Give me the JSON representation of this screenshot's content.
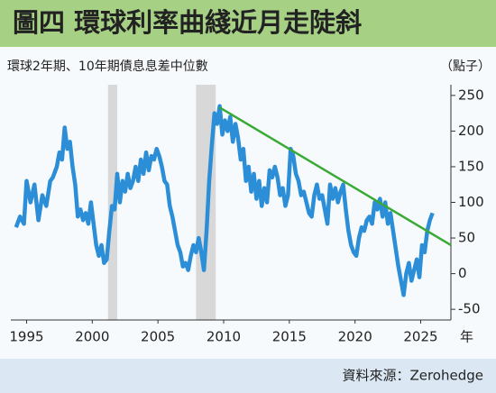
{
  "chart_data": {
    "type": "line",
    "title": "圖四 環球利率曲綫近月走陡斜",
    "subtitle": "環球2年期、10年期債息息差中位數",
    "y_unit": "（點子）",
    "x_unit": "年",
    "source": "資料來源：Zerohedge",
    "series": [
      {
        "color": "#2b8ed6",
        "x": [
          1994.2,
          1994.5,
          1994.8,
          1995.0,
          1995.3,
          1995.6,
          1995.9,
          1996.2,
          1996.5,
          1996.8,
          1997.0,
          1997.3,
          1997.5,
          1997.7,
          1997.9,
          1998.1,
          1998.3,
          1998.5,
          1998.7,
          1998.9,
          1999.1,
          1999.3,
          1999.5,
          1999.7,
          1999.9,
          2000.1,
          2000.3,
          2000.5,
          2000.7,
          2000.9,
          2001.1,
          2001.3,
          2001.5,
          2001.7,
          2001.9,
          2002.1,
          2002.3,
          2002.5,
          2002.7,
          2002.9,
          2003.1,
          2003.3,
          2003.5,
          2003.7,
          2003.9,
          2004.1,
          2004.3,
          2004.5,
          2004.7,
          2004.9,
          2005.1,
          2005.3,
          2005.5,
          2005.7,
          2005.9,
          2006.1,
          2006.3,
          2006.5,
          2006.7,
          2006.9,
          2007.1,
          2007.3,
          2007.5,
          2007.7,
          2007.9,
          2008.1,
          2008.3,
          2008.5,
          2008.7,
          2008.9,
          2009.1,
          2009.3,
          2009.5,
          2009.7,
          2009.9,
          2010.1,
          2010.3,
          2010.5,
          2010.7,
          2010.9,
          2011.1,
          2011.3,
          2011.5,
          2011.7,
          2011.9,
          2012.1,
          2012.3,
          2012.5,
          2012.7,
          2012.9,
          2013.1,
          2013.3,
          2013.5,
          2013.7,
          2013.9,
          2014.1,
          2014.3,
          2014.5,
          2014.7,
          2014.9,
          2015.1,
          2015.3,
          2015.5,
          2015.7,
          2015.9,
          2016.1,
          2016.3,
          2016.5,
          2016.7,
          2016.9,
          2017.1,
          2017.3,
          2017.5,
          2017.7,
          2017.9,
          2018.1,
          2018.3,
          2018.5,
          2018.7,
          2018.9,
          2019.1,
          2019.3,
          2019.5,
          2019.7,
          2019.9,
          2020.1,
          2020.3,
          2020.5,
          2020.7,
          2020.9,
          2021.1,
          2021.3,
          2021.5,
          2021.7,
          2021.9,
          2022.1,
          2022.3,
          2022.5,
          2022.7,
          2022.9,
          2023.1,
          2023.3,
          2023.5,
          2023.7,
          2023.9,
          2024.1,
          2024.3,
          2024.5,
          2024.7,
          2024.9,
          2025.1,
          2025.3,
          2025.5,
          2025.7,
          2025.9
        ],
        "values": [
          65,
          80,
          70,
          130,
          100,
          125,
          75,
          110,
          95,
          130,
          135,
          150,
          170,
          160,
          205,
          175,
          185,
          150,
          125,
          80,
          90,
          75,
          85,
          70,
          100,
          70,
          40,
          25,
          40,
          15,
          20,
          60,
          95,
          90,
          140,
          100,
          130,
          115,
          140,
          120,
          130,
          150,
          130,
          160,
          140,
          170,
          145,
          165,
          160,
          175,
          165,
          150,
          130,
          125,
          95,
          80,
          60,
          40,
          30,
          10,
          15,
          5,
          25,
          40,
          30,
          50,
          30,
          5,
          60,
          130,
          180,
          225,
          210,
          235,
          195,
          215,
          200,
          220,
          185,
          210,
          190,
          160,
          175,
          130,
          150,
          115,
          140,
          105,
          130,
          95,
          120,
          100,
          145,
          135,
          150,
          135,
          110,
          120,
          95,
          110,
          175,
          165,
          140,
          130,
          110,
          115,
          100,
          85,
          80,
          110,
          125,
          105,
          110,
          90,
          70,
          125,
          105,
          120,
          100,
          115,
          125,
          90,
          60,
          40,
          30,
          25,
          50,
          65,
          60,
          75,
          80,
          70,
          100,
          90,
          105,
          80,
          100,
          70,
          85,
          60,
          35,
          10,
          -10,
          -30,
          0,
          15,
          -10,
          5,
          20,
          -5,
          40,
          30,
          60,
          75,
          85
        ]
      }
    ],
    "trend": {
      "color": "#3aa935",
      "x": [
        2009.7,
        2027.3
      ],
      "values": [
        233,
        40
      ]
    },
    "shaded_periods": [
      [
        2001.2,
        2001.9
      ],
      [
        2007.9,
        2009.4
      ]
    ],
    "xlim": [
      1993.8,
      2027.3
    ],
    "ylim": [
      -65,
      265
    ],
    "xticks": [
      1995,
      2000,
      2005,
      2010,
      2015,
      2020,
      2025
    ],
    "yticks": [
      250,
      200,
      150,
      100,
      50,
      0,
      -50
    ]
  }
}
